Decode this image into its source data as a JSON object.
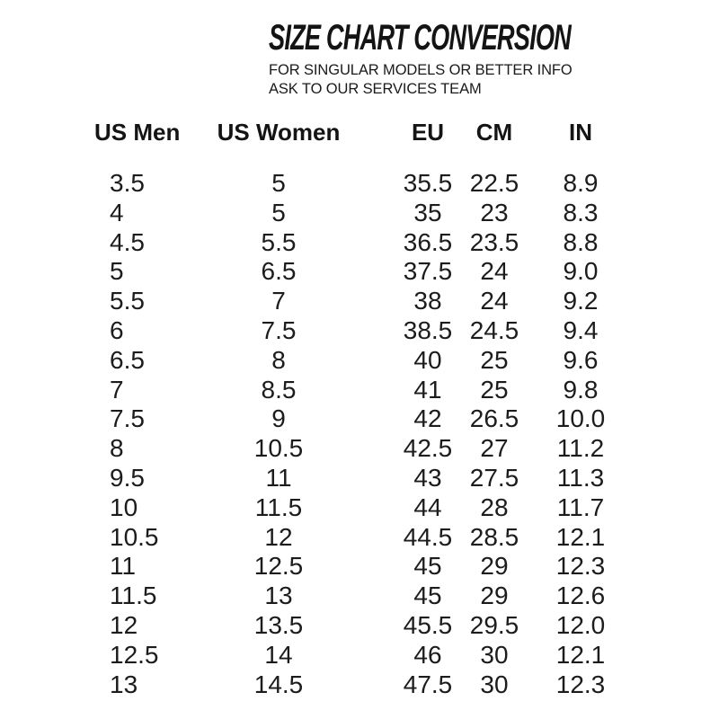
{
  "page": {
    "background_color": "#ffffff",
    "text_color": "#1a1a1a"
  },
  "header": {
    "title": "SIZE CHART CONVERSION",
    "subtitle_line1": "FOR SINGULAR MODELS OR BETTER INFO",
    "subtitle_line2": "ASK TO OUR SERVICES TEAM"
  },
  "chart_data": {
    "type": "table",
    "title": "SIZE CHART CONVERSION",
    "columns": [
      "US Men",
      "US Women",
      "EU",
      "CM",
      "IN"
    ],
    "rows": [
      [
        "3.5",
        "5",
        "35.5",
        "22.5",
        "8.9"
      ],
      [
        "4",
        "5",
        "35",
        "23",
        "8.3"
      ],
      [
        "4.5",
        "5.5",
        "36.5",
        "23.5",
        "8.8"
      ],
      [
        "5",
        "6.5",
        "37.5",
        "24",
        "9.0"
      ],
      [
        "5.5",
        "7",
        "38",
        "24",
        "9.2"
      ],
      [
        "6",
        "7.5",
        "38.5",
        "24.5",
        "9.4"
      ],
      [
        "6.5",
        "8",
        "40",
        "25",
        "9.6"
      ],
      [
        "7",
        "8.5",
        "41",
        "25",
        "9.8"
      ],
      [
        "7.5",
        "9",
        "42",
        "26.5",
        "10.0"
      ],
      [
        "8",
        "10.5",
        "42.5",
        "27",
        "11.2"
      ],
      [
        "9.5",
        "11",
        "43",
        "27.5",
        "11.3"
      ],
      [
        "10",
        "11.5",
        "44",
        "28",
        "11.7"
      ],
      [
        "10.5",
        "12",
        "44.5",
        "28.5",
        "12.1"
      ],
      [
        "11",
        "12.5",
        "45",
        "29",
        "12.3"
      ],
      [
        "11.5",
        "13",
        "45",
        "29",
        "12.6"
      ],
      [
        "12",
        "13.5",
        "45.5",
        "29.5",
        "12.0"
      ],
      [
        "12.5",
        "14",
        "46",
        "30",
        "12.1"
      ],
      [
        "13",
        "14.5",
        "47.5",
        "30",
        "12.3"
      ]
    ]
  }
}
